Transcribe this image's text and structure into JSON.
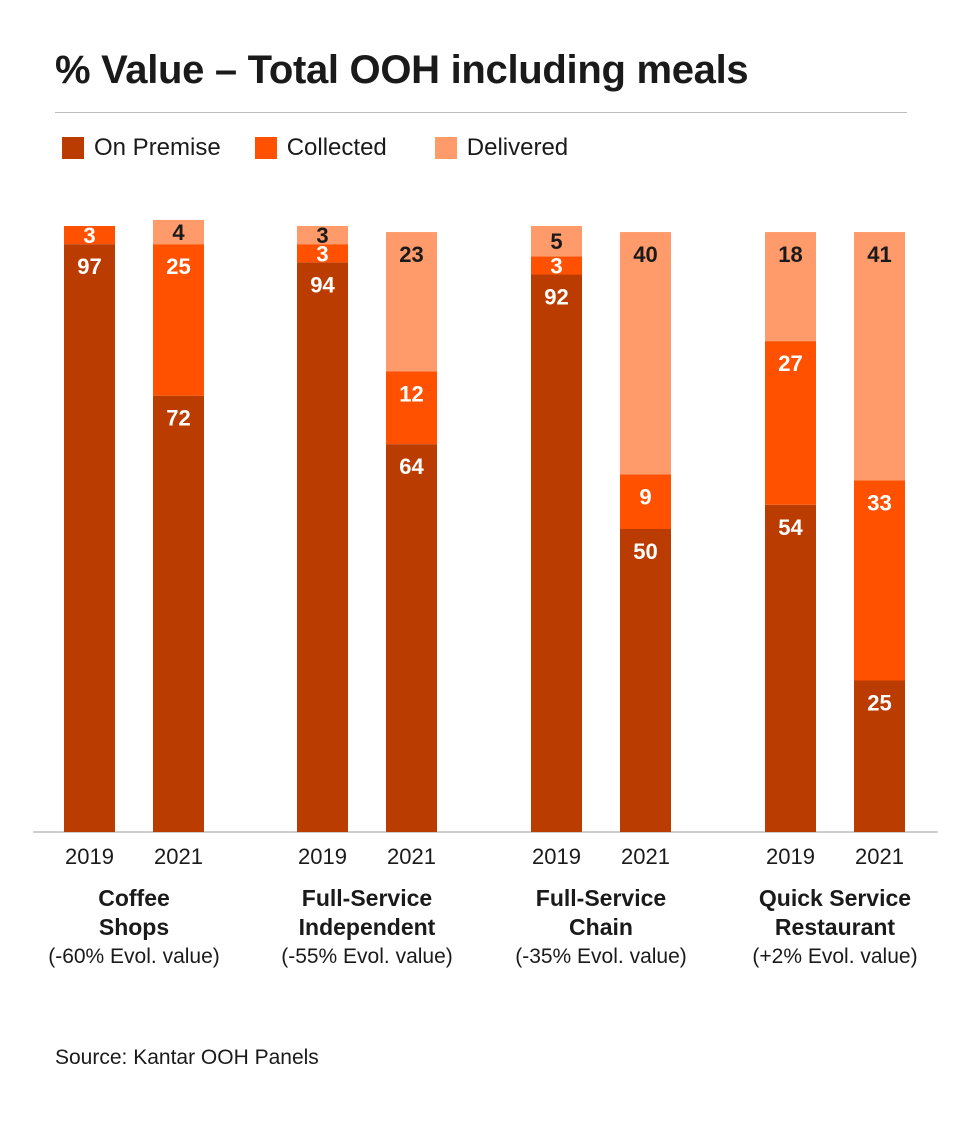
{
  "title": "% Value – Total OOH including meals",
  "colors": {
    "on_premise": "#bb3c00",
    "collected": "#ff5100",
    "delivered": "#ff9b6a",
    "axis": "#bdbdbd",
    "label_dark": "#1a1a1a",
    "label_light": "#ffffff"
  },
  "source": "Source: Kantar OOH Panels",
  "chart_data": {
    "type": "bar",
    "stacked": true,
    "unit": "%",
    "ylim": [
      0,
      100
    ],
    "grid": false,
    "legend_placement": "top-left",
    "series": [
      {
        "name": "On Premise",
        "values": [
          97,
          72,
          94,
          64,
          92,
          50,
          54,
          25
        ]
      },
      {
        "name": "Collected",
        "values": [
          3,
          25,
          3,
          12,
          3,
          9,
          27,
          33
        ]
      },
      {
        "name": "Delivered",
        "values": [
          0,
          4,
          3,
          23,
          5,
          40,
          18,
          41
        ]
      }
    ],
    "categories": [
      "2019",
      "2021",
      "2019",
      "2021",
      "2019",
      "2021",
      "2019",
      "2021"
    ],
    "groups": [
      {
        "name_lines": [
          "Coffee",
          "Shops"
        ],
        "subtitle": "(-60% Evol. value)",
        "years": [
          "2019",
          "2021"
        ]
      },
      {
        "name_lines": [
          "Full-Service",
          "Independent"
        ],
        "subtitle": "(-55% Evol. value)",
        "years": [
          "2019",
          "2021"
        ]
      },
      {
        "name_lines": [
          "Full-Service",
          "Chain"
        ],
        "subtitle": "(-35% Evol. value)",
        "years": [
          "2019",
          "2021"
        ]
      },
      {
        "name_lines": [
          "Quick Service",
          "Restaurant"
        ],
        "subtitle": "(+2% Evol. value)",
        "years": [
          "2019",
          "2021"
        ]
      }
    ]
  }
}
